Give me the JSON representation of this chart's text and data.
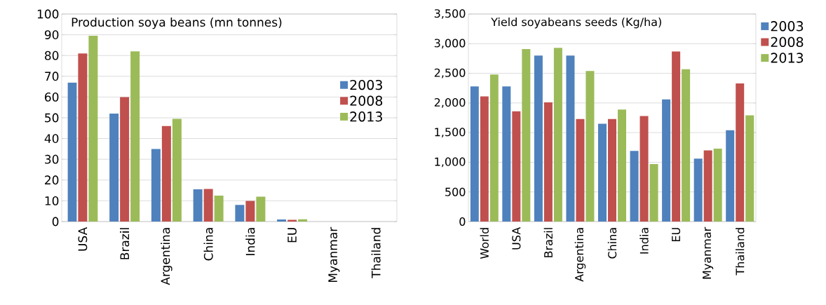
{
  "chart_data": [
    {
      "type": "bar",
      "title": "Production soya beans (mn tonnes)",
      "categories": [
        "USA",
        "Brazil",
        "Argentina",
        "China",
        "India",
        "EU",
        "Myanmar",
        "Thailand"
      ],
      "series": [
        {
          "name": "2003",
          "color": "#4f81bd",
          "values": [
            67,
            52,
            35,
            15.5,
            8,
            1,
            null,
            null
          ]
        },
        {
          "name": "2008",
          "color": "#c0504d",
          "values": [
            81,
            60,
            46,
            15.7,
            10,
            0.8,
            null,
            null
          ]
        },
        {
          "name": "2013",
          "color": "#9bbb59",
          "values": [
            89.5,
            82,
            49.5,
            12.5,
            12,
            1.1,
            null,
            null
          ]
        }
      ],
      "ylim": [
        0,
        100
      ],
      "yticks": [
        0,
        10,
        20,
        30,
        40,
        50,
        60,
        70,
        80,
        90,
        100
      ],
      "grid": "y",
      "legend": "right"
    },
    {
      "type": "bar",
      "title": "Yield soyabeans  seeds (Kg/ha)",
      "categories": [
        "World",
        "USA",
        "Brazil",
        "Argentina",
        "China",
        "India",
        "EU",
        "Myanmar",
        "Thailand"
      ],
      "series": [
        {
          "name": "2003",
          "color": "#4f81bd",
          "values": [
            2280,
            2280,
            2800,
            2800,
            1650,
            1190,
            2060,
            1060,
            1540
          ]
        },
        {
          "name": "2008",
          "color": "#c0504d",
          "values": [
            2110,
            1860,
            2010,
            1730,
            1730,
            1780,
            2870,
            1200,
            2330
          ]
        },
        {
          "name": "2013",
          "color": "#9bbb59",
          "values": [
            2480,
            2910,
            2930,
            2540,
            1890,
            970,
            2570,
            1230,
            1790
          ]
        }
      ],
      "ylim": [
        0,
        3500
      ],
      "yticks": [
        0,
        {
          "value": 500,
          "label": "500"
        },
        {
          "value": 1000,
          "label": "1,000"
        },
        {
          "value": 1500,
          "label": "1,500"
        },
        {
          "value": 2000,
          "label": "2,000"
        },
        {
          "value": 2500,
          "label": "2,500"
        },
        {
          "value": 3000,
          "label": "3,000"
        },
        {
          "value": 3500,
          "label": "3,500"
        }
      ],
      "grid": "y",
      "legend": "top right"
    }
  ]
}
